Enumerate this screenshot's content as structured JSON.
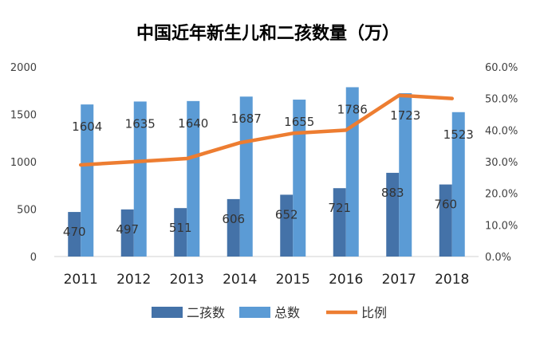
{
  "chart_data": {
    "type": "bar",
    "title": "中国近年新生儿和二孩数量（万）",
    "categories": [
      "2011",
      "2012",
      "2013",
      "2014",
      "2015",
      "2016",
      "2017",
      "2018"
    ],
    "series": [
      {
        "name": "二孩数",
        "kind": "bar",
        "axis": "left",
        "color": "#4472a8",
        "values": [
          470,
          497,
          511,
          606,
          652,
          721,
          883,
          760
        ]
      },
      {
        "name": "总数",
        "kind": "bar",
        "axis": "left",
        "color": "#5b9bd5",
        "values": [
          1604,
          1635,
          1640,
          1687,
          1655,
          1786,
          1723,
          1523
        ]
      },
      {
        "name": "比例",
        "kind": "line",
        "axis": "right",
        "color": "#ed7d31",
        "values": [
          0.29,
          0.3,
          0.31,
          0.36,
          0.39,
          0.4,
          0.51,
          0.5
        ]
      }
    ],
    "left_axis": {
      "min": 0,
      "max": 2000,
      "ticks": [
        "0",
        "500",
        "1000",
        "1500",
        "2000"
      ]
    },
    "right_axis": {
      "min": 0,
      "max": 0.6,
      "ticks": [
        "0.0%",
        "10.0%",
        "20.0%",
        "30.0%",
        "40.0%",
        "50.0%",
        "60.0%"
      ]
    },
    "grid": false,
    "legend_position": "bottom"
  }
}
